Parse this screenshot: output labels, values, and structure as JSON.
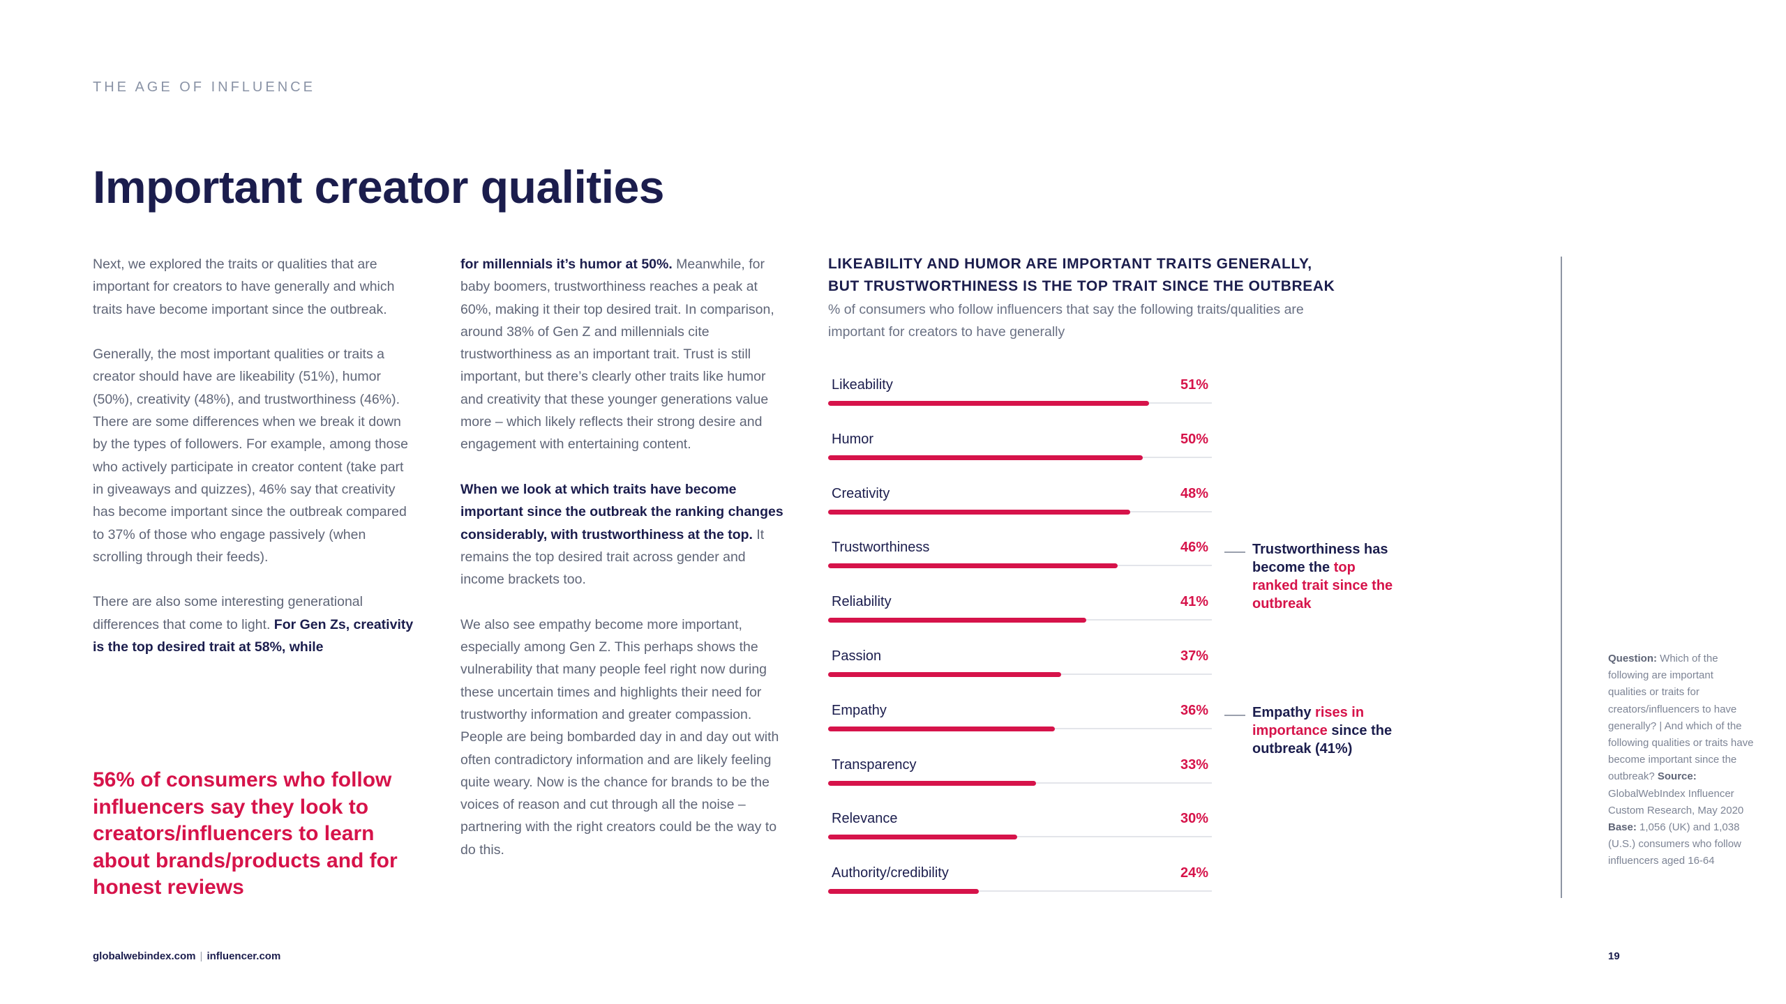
{
  "header": {
    "kicker": "THE AGE OF INFLUENCE"
  },
  "page_title": "Important creator qualities",
  "column1": {
    "p1": "Next, we explored the traits or qualities that are important for creators to have generally and which traits have become important since the outbreak.",
    "p2": "Generally, the most important qualities or traits a creator should have are likeability (51%), humor (50%), creativity (48%), and trustworthiness (46%). There are some differences when we break it down by the types of followers. For example, among those who actively participate in creator content (take part in giveaways and quizzes), 46% say that creativity has become important since the outbreak compared to 37% of those who engage passively (when scrolling through their feeds).",
    "p3_text": "There are also some interesting generational differences that come to light. ",
    "p3_bold": "For Gen Zs, creativity is the top desired trait at 58%, while"
  },
  "pullquote": "56% of consumers who follow influencers say they look to creators/influencers to learn about brands/products and for honest reviews",
  "column2": {
    "p1_bold": "for millennials it’s humor at 50%.",
    "p1_text": " Meanwhile, for baby boomers, trustworthiness reaches a peak at 60%, making it their top desired trait. In comparison, around 38% of Gen Z and millennials cite trustworthiness as an important trait. Trust is still important, but there’s clearly other traits like humor and creativity that these younger generations value more – which likely reflects their strong desire and engagement with entertaining content.",
    "p2_bold": "When we look at which traits have become important since the outbreak the ranking changes considerably, with trustworthiness at the top.",
    "p2_text": " It remains the top desired trait across gender and income brackets too.",
    "p3": "We also see empathy become more important, especially among Gen Z. This perhaps shows the vulnerability that many people feel right now during these uncertain times and highlights their need for trustworthy information and greater compassion. People are being bombarded day in and day out with often contradictory information and are likely feeling quite weary. Now is the chance for brands to be the voices of reason and cut through all the noise – partnering with the right creators could be the way to do this."
  },
  "chart_data": {
    "type": "bar",
    "orientation": "horizontal",
    "title_line1": "LIKEABILITY AND HUMOR ARE IMPORTANT TRAITS GENERALLY,",
    "title_line2": "BUT TRUSTWORTHINESS IS THE TOP TRAIT SINCE THE OUTBREAK",
    "subtitle": "% of consumers who follow influencers that say the following traits/qualities are important for creators to have generally",
    "categories": [
      "Likeability",
      "Humor",
      "Creativity",
      "Trustworthiness",
      "Reliability",
      "Passion",
      "Empathy",
      "Transparency",
      "Relevance",
      "Authority/credibility"
    ],
    "values": [
      51,
      50,
      48,
      46,
      41,
      37,
      36,
      33,
      30,
      24
    ],
    "value_labels": [
      "51%",
      "50%",
      "48%",
      "46%",
      "41%",
      "37%",
      "36%",
      "33%",
      "30%",
      "24%"
    ],
    "xlim": [
      0,
      60
    ],
    "bar_color": "#d6134a",
    "track_color": "#e3e5ea"
  },
  "callouts": {
    "trust": {
      "line1": "Trustworthiness has become the ",
      "highlight": "top ranked trait since the outbreak"
    },
    "empathy": {
      "line1": "Empathy ",
      "highlight": "rises in importance",
      "line2": " since the outbreak (41%)"
    }
  },
  "side_note": {
    "question_label": "Question:",
    "question_text": " Which of the following are important qualities or traits for creators/influencers to have generally? | And which of the following qualities or traits have become important since the outbreak? ",
    "source_label": "Source:",
    "source_text": " GlobalWebIndex Influencer Custom Research, May 2020 ",
    "base_label": "Base:",
    "base_text": " 1,056 (UK) and 1,038 (U.S.) consumers who follow influencers aged 16-64"
  },
  "footer": {
    "left_a": "globalwebindex.com",
    "sep": "|",
    "left_b": "influencer.com",
    "page_number": "19"
  },
  "colors": {
    "navy": "#1b1d4d",
    "accent": "#d6134a",
    "body_text": "#5f6577"
  }
}
